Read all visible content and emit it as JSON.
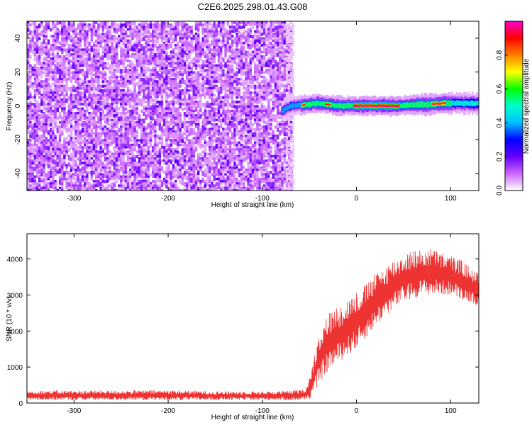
{
  "page": {
    "title": "C2E6.2025.298.01.43.G08"
  },
  "chart_data": [
    {
      "type": "heatmap",
      "xlabel": "Height of straight line (km)",
      "ylabel": "Frequency (Hz)",
      "xlim": [
        -350,
        130
      ],
      "ylim": [
        -50,
        50
      ],
      "x_ticks": [
        -300,
        -200,
        -100,
        0,
        100
      ],
      "y_ticks": [
        -40,
        -20,
        0,
        20,
        40
      ],
      "regions": {
        "noise": {
          "x": [
            -350,
            -68
          ],
          "freq_range": [
            -50,
            50
          ],
          "level": "low"
        },
        "signal": {
          "x": [
            -80,
            130
          ],
          "center_freq": [
            [
              -80,
              -3
            ],
            [
              -70,
              0
            ],
            [
              -50,
              1
            ],
            [
              -40,
              1.5
            ],
            [
              -30,
              1
            ],
            [
              -20,
              0
            ],
            [
              0,
              0
            ],
            [
              40,
              0
            ],
            [
              60,
              0.5
            ],
            [
              90,
              1.5
            ],
            [
              130,
              1.5
            ]
          ],
          "peak_amplitude": 0.85
        }
      },
      "colorbar": {
        "label": "Normalized spectral amplitude",
        "range": [
          0,
          1
        ],
        "ticks": [
          0.0,
          0.2,
          0.4,
          0.6,
          0.8
        ],
        "tick_labels": [
          "0.0",
          "0.2",
          "0.4",
          "0.6",
          "0.8"
        ],
        "colors": [
          "#ffffff",
          "#cc66ff",
          "#6600ff",
          "#0000ff",
          "#00bfff",
          "#00ffcc",
          "#00ff00",
          "#ffff00",
          "#ff8000",
          "#ff0000",
          "#ff00cc"
        ]
      }
    },
    {
      "type": "line",
      "xlabel": "Height of straight line (km)",
      "ylabel": "SNR (10 * v/v)",
      "xlim": [
        -350,
        130
      ],
      "ylim": [
        0,
        4700
      ],
      "x_ticks": [
        -300,
        -200,
        -100,
        0,
        100
      ],
      "y_ticks": [
        0,
        1000,
        2000,
        3000,
        4000
      ],
      "color": "#ee3333",
      "envelope": {
        "x": [
          -350,
          -300,
          -250,
          -200,
          -150,
          -100,
          -70,
          -55,
          -50,
          -45,
          -40,
          -30,
          -20,
          -10,
          0,
          10,
          20,
          30,
          40,
          50,
          60,
          70,
          80,
          90,
          100,
          110,
          120,
          130
        ],
        "low": [
          80,
          80,
          80,
          80,
          80,
          80,
          80,
          80,
          100,
          300,
          500,
          900,
          1100,
          1300,
          1500,
          1800,
          2100,
          2400,
          2600,
          2800,
          2900,
          3000,
          3000,
          3000,
          3000,
          2900,
          2800,
          2700
        ],
        "high": [
          350,
          350,
          350,
          360,
          330,
          330,
          340,
          400,
          700,
          1300,
          2000,
          2500,
          2700,
          2900,
          3100,
          3300,
          3600,
          3800,
          4000,
          4150,
          4250,
          4250,
          4300,
          4200,
          4100,
          4000,
          3800,
          3600
        ]
      }
    }
  ]
}
